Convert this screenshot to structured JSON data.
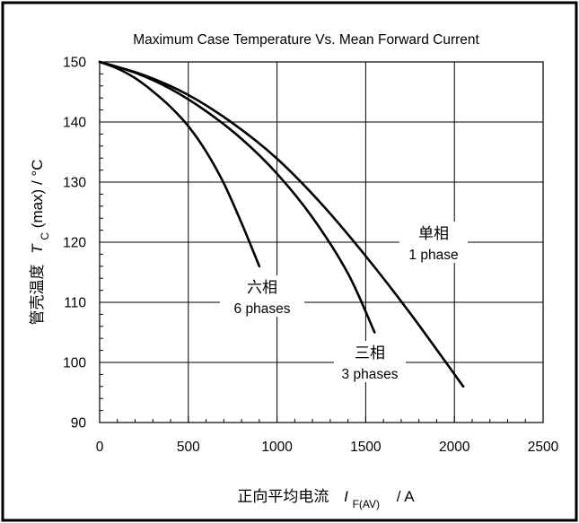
{
  "chart_data": {
    "type": "line",
    "title": "Maximum Case Temperature Vs. Mean Forward Current",
    "xlabel": {
      "prefix": "正向平均电流",
      "symbol": "I",
      "subscript": "F(AV)",
      "suffix": "/  A"
    },
    "ylabel": {
      "prefix": "管壳温度",
      "symbol": "T",
      "subscript": "C",
      "suffix": "(max) / °C"
    },
    "xlim": [
      0,
      2500
    ],
    "ylim": [
      90,
      150
    ],
    "xticks": [
      0,
      500,
      1000,
      1500,
      2000,
      2500
    ],
    "yticks": [
      90,
      100,
      110,
      120,
      130,
      140,
      150
    ],
    "grid": true,
    "series": [
      {
        "name": "六相 6 phases",
        "label_cn": "六相",
        "label_en": "6 phases",
        "x": [
          0,
          100,
          200,
          300,
          400,
          500,
          600,
          700,
          800,
          900
        ],
        "y": [
          150,
          148.9,
          147.3,
          145.1,
          142.5,
          139.3,
          135.1,
          129.8,
          123.2,
          116
        ]
      },
      {
        "name": "三相 3 phases",
        "label_cn": "三相",
        "label_en": "3 phases",
        "x": [
          0,
          200,
          400,
          600,
          800,
          1000,
          1200,
          1400,
          1550
        ],
        "y": [
          150,
          148.2,
          145.5,
          141.8,
          137.2,
          131.4,
          124.1,
          114.8,
          105
        ]
      },
      {
        "name": "单相 1 phase",
        "label_cn": "单相",
        "label_en": "1 phase",
        "x": [
          0,
          250,
          500,
          750,
          1000,
          1250,
          1500,
          1750,
          2050
        ],
        "y": [
          150,
          147.8,
          144.5,
          139.8,
          133.9,
          126.4,
          117.7,
          108.2,
          96
        ]
      }
    ]
  }
}
